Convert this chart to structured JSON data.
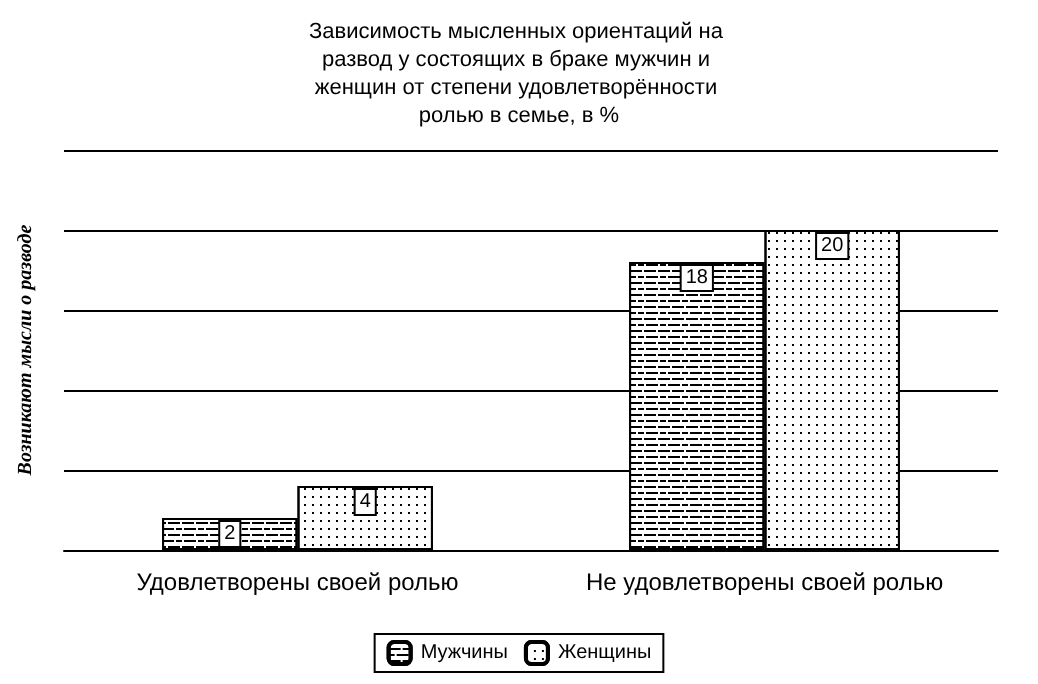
{
  "chart_data": {
    "type": "bar",
    "title": "Зависимость мысленных ориентаций на развод у состоящих в браке мужчин и женщин от степени удовлетворённости ролью в семье, в %",
    "ylabel": "Возникают мысли о разводе",
    "categories": [
      "Удовлетворены своей ролью",
      "Не удовлетворены своей ролью"
    ],
    "series": [
      {
        "name": "Мужчины",
        "color": "#ffffff",
        "values": [
          2,
          18
        ]
      },
      {
        "name": "Женщины",
        "color": "#ffffff",
        "values": [
          4,
          20
        ]
      }
    ],
    "ylim": [
      0,
      25
    ],
    "yticks": [
      {
        "value": 0,
        "label": null
      },
      {
        "value": 5,
        "label": null
      },
      {
        "value": 10,
        "label": null
      },
      {
        "value": 15,
        "label": null
      },
      {
        "value": 20,
        "label": null
      },
      {
        "value": 25,
        "label": null
      }
    ],
    "tick_labels": "x",
    "grid": "y",
    "legend": "bottom",
    "data_labels": true
  }
}
